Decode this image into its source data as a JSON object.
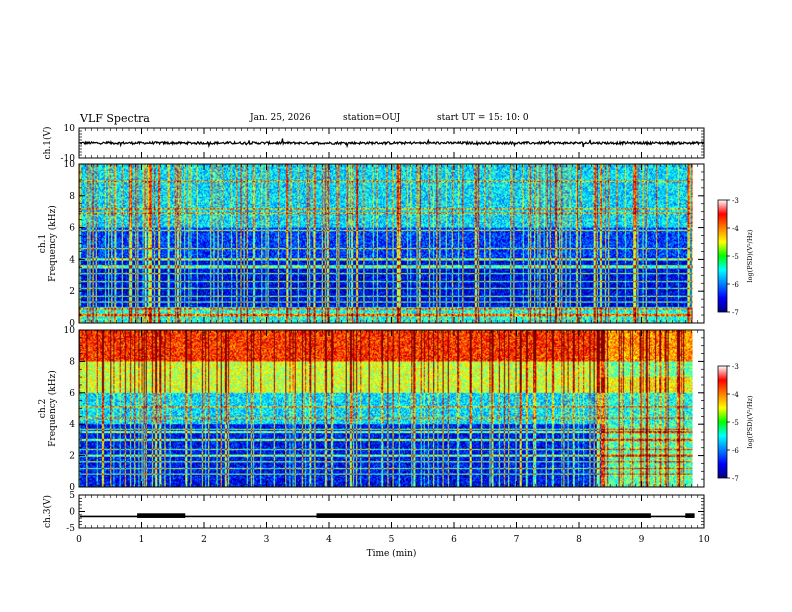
{
  "header": {
    "title": "VLF Spectra",
    "date": "Jan. 25, 2026",
    "station": "station=OUJ",
    "start_ut": "start  UT =  15: 10: 0"
  },
  "chart_data": [
    {
      "type": "line",
      "name": "ch1-waveform",
      "ylabel": "ch.1(V)",
      "ylim": [
        -10,
        10
      ],
      "yticks": [
        "10",
        "-10"
      ],
      "xlim": [
        0,
        10
      ],
      "baseline": 0,
      "color": "#000000"
    },
    {
      "type": "heatmap",
      "name": "ch1-spectrogram",
      "ylabel": "ch.1",
      "ylabel2": "Frequency (kHz)",
      "ylim": [
        0,
        10
      ],
      "yticks": [
        "0",
        "2",
        "4",
        "6",
        "8",
        "10"
      ],
      "xlim": [
        0,
        10
      ],
      "colorbar": {
        "label": "log(PSD)(V²/Hz)",
        "ticks": [
          "-3",
          "-4",
          "-5",
          "-6",
          "-7"
        ],
        "range": [
          -7,
          -3
        ]
      },
      "tone_lines_khz": [
        0.5,
        0.9,
        1.3,
        1.7,
        2.2,
        2.6,
        3.1,
        3.5,
        3.6,
        4.0,
        4.7,
        5.8,
        6.9,
        7.2,
        8.9
      ],
      "noise_level_by_band": [
        [
          0,
          1,
          -5.4
        ],
        [
          1,
          4,
          -6.6
        ],
        [
          4,
          6,
          -6.3
        ],
        [
          6,
          10,
          -5.6
        ]
      ]
    },
    {
      "type": "heatmap",
      "name": "ch2-spectrogram",
      "ylabel": "ch.2",
      "ylabel2": "Frequency (kHz)",
      "ylim": [
        0,
        10
      ],
      "yticks": [
        "0",
        "2",
        "4",
        "6",
        "8",
        "10"
      ],
      "xlim": [
        0,
        10
      ],
      "colorbar": {
        "label": "log(PSD)(V²/Hz)",
        "ticks": [
          "-3",
          "-4",
          "-5",
          "-6",
          "-7"
        ],
        "range": [
          -7,
          -3
        ]
      },
      "tone_lines_khz": [
        0.8,
        1.2,
        1.6,
        2.0,
        2.4,
        3.0,
        3.5,
        3.7,
        4.4,
        5.1
      ],
      "noise_level_by_band": [
        [
          0,
          4,
          -6.5
        ],
        [
          4,
          6,
          -5.6
        ],
        [
          6,
          8,
          -4.7
        ],
        [
          8,
          10,
          -3.7
        ]
      ],
      "regime_change_min": 8.35
    },
    {
      "type": "line",
      "name": "ch3-signal",
      "ylabel": "ch.3(V)",
      "ylim": [
        -5,
        5
      ],
      "yticks": [
        "5",
        "0",
        "-5"
      ],
      "xlim": [
        0,
        10
      ],
      "xlabel": "Time (min)",
      "xticks": [
        "0",
        "1",
        "2",
        "3",
        "4",
        "5",
        "6",
        "7",
        "8",
        "9",
        "10"
      ],
      "high_segments_min": [
        [
          0.93,
          1.7
        ],
        [
          3.8,
          9.15
        ],
        [
          9.7,
          9.85
        ]
      ],
      "level_low": -1.5,
      "level_high": -1.0
    }
  ]
}
